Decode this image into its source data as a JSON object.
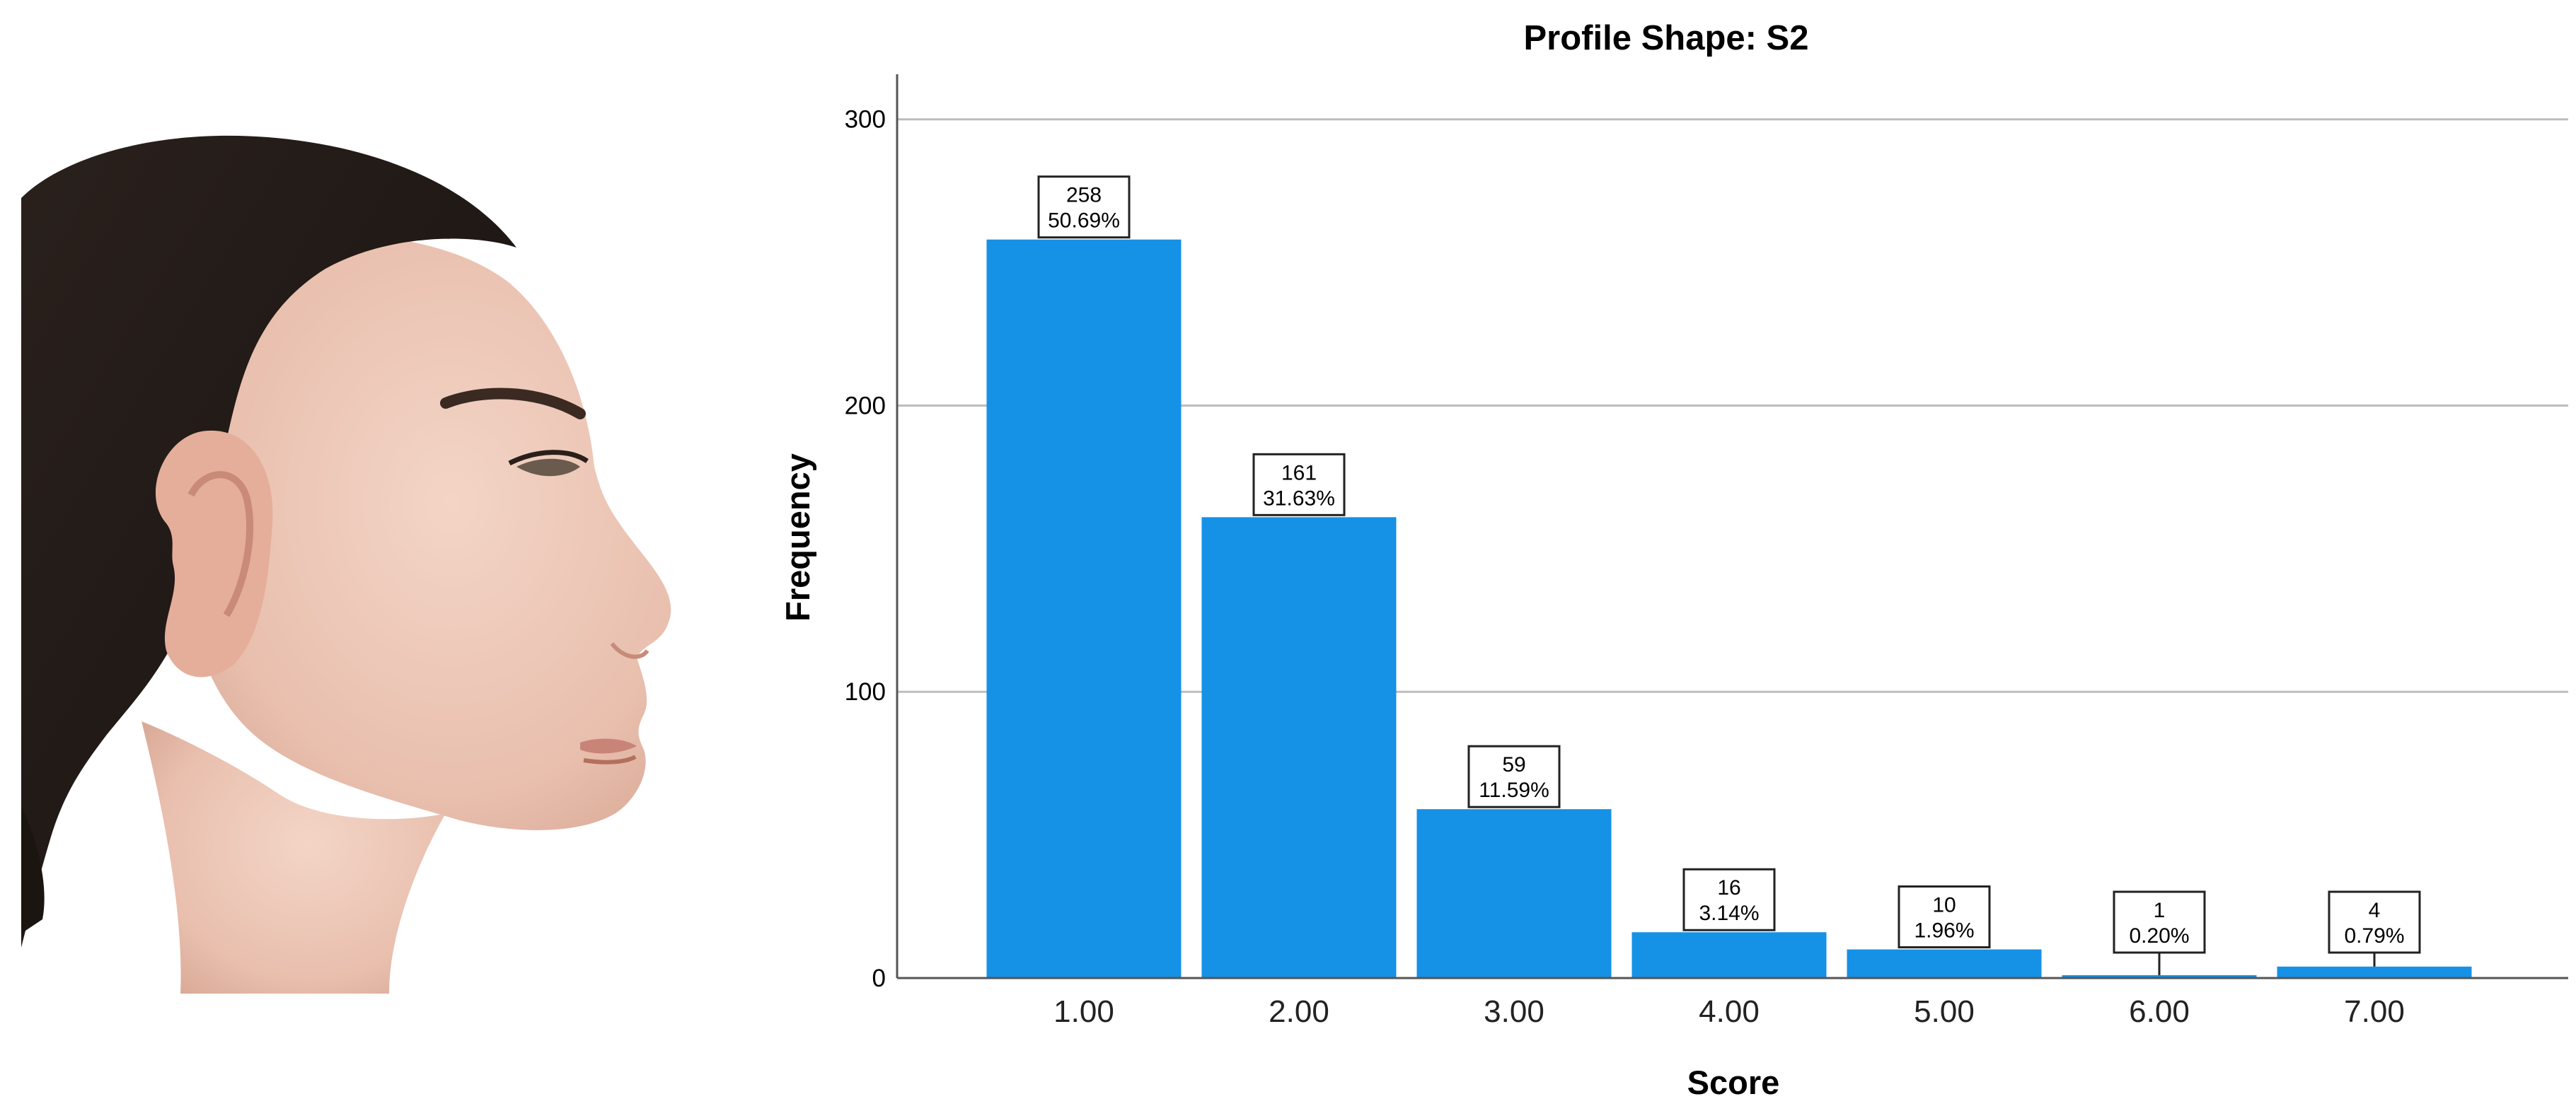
{
  "colors": {
    "bar": "#1591e6",
    "gridline": "#bdbdbd",
    "axis": "#555555"
  },
  "figure": {
    "photo_subject": "woman-side-profile-photo"
  },
  "chart_data": {
    "type": "bar",
    "title": "Profile Shape: S2",
    "xlabel": "Score",
    "ylabel": "Frequency",
    "categories": [
      "1.00",
      "2.00",
      "3.00",
      "4.00",
      "5.00",
      "6.00",
      "7.00"
    ],
    "values": [
      258,
      161,
      59,
      16,
      10,
      1,
      4
    ],
    "percent_labels": [
      "50.69%",
      "31.63%",
      "11.59%",
      "3.14%",
      "1.96%",
      "0.20%",
      "0.79%"
    ],
    "ylim": [
      0,
      315
    ],
    "yticks": [
      0,
      100,
      200,
      300
    ],
    "grid": true,
    "legend": "none"
  }
}
